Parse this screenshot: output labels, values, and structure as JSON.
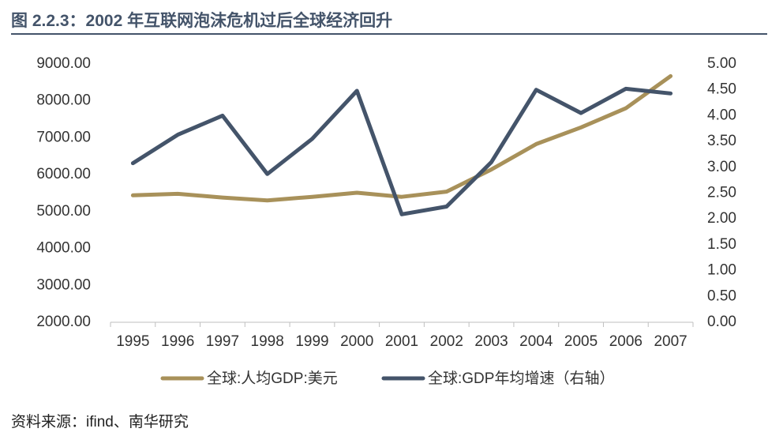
{
  "title": "图 2.2.3：2002 年互联网泡沫危机过后全球经济回升",
  "source": "资料来源：ifind、南华研究",
  "colors": {
    "title": "#44546A",
    "series1": "#A8915A",
    "series2": "#44546A"
  },
  "chart_data": {
    "type": "line",
    "title": "",
    "categories": [
      "1995",
      "1996",
      "1997",
      "1998",
      "1999",
      "2000",
      "2001",
      "2002",
      "2003",
      "2004",
      "2005",
      "2006",
      "2007"
    ],
    "y_left": {
      "min": 2000,
      "max": 9000,
      "ticks": [
        "9000.00",
        "8000.00",
        "7000.00",
        "6000.00",
        "5000.00",
        "4000.00",
        "3000.00",
        "2000.00"
      ]
    },
    "y_right": {
      "min": 0,
      "max": 5,
      "ticks": [
        "5.00",
        "4.50",
        "4.00",
        "3.50",
        "3.00",
        "2.50",
        "2.00",
        "1.50",
        "1.00",
        "0.50",
        "0.00"
      ]
    },
    "series": [
      {
        "name": "全球:人均GDP:美元",
        "axis": "left",
        "values": [
          5440,
          5480,
          5380,
          5300,
          5400,
          5510,
          5400,
          5540,
          6140,
          6830,
          7280,
          7800,
          8670
        ]
      },
      {
        "name": "全球:GDP年均增速（右轴）",
        "axis": "right",
        "values": [
          3.08,
          3.63,
          4.0,
          2.87,
          3.55,
          4.48,
          2.09,
          2.24,
          3.1,
          4.5,
          4.05,
          4.52,
          4.43
        ]
      }
    ],
    "grid": false,
    "legend_position": "bottom"
  }
}
